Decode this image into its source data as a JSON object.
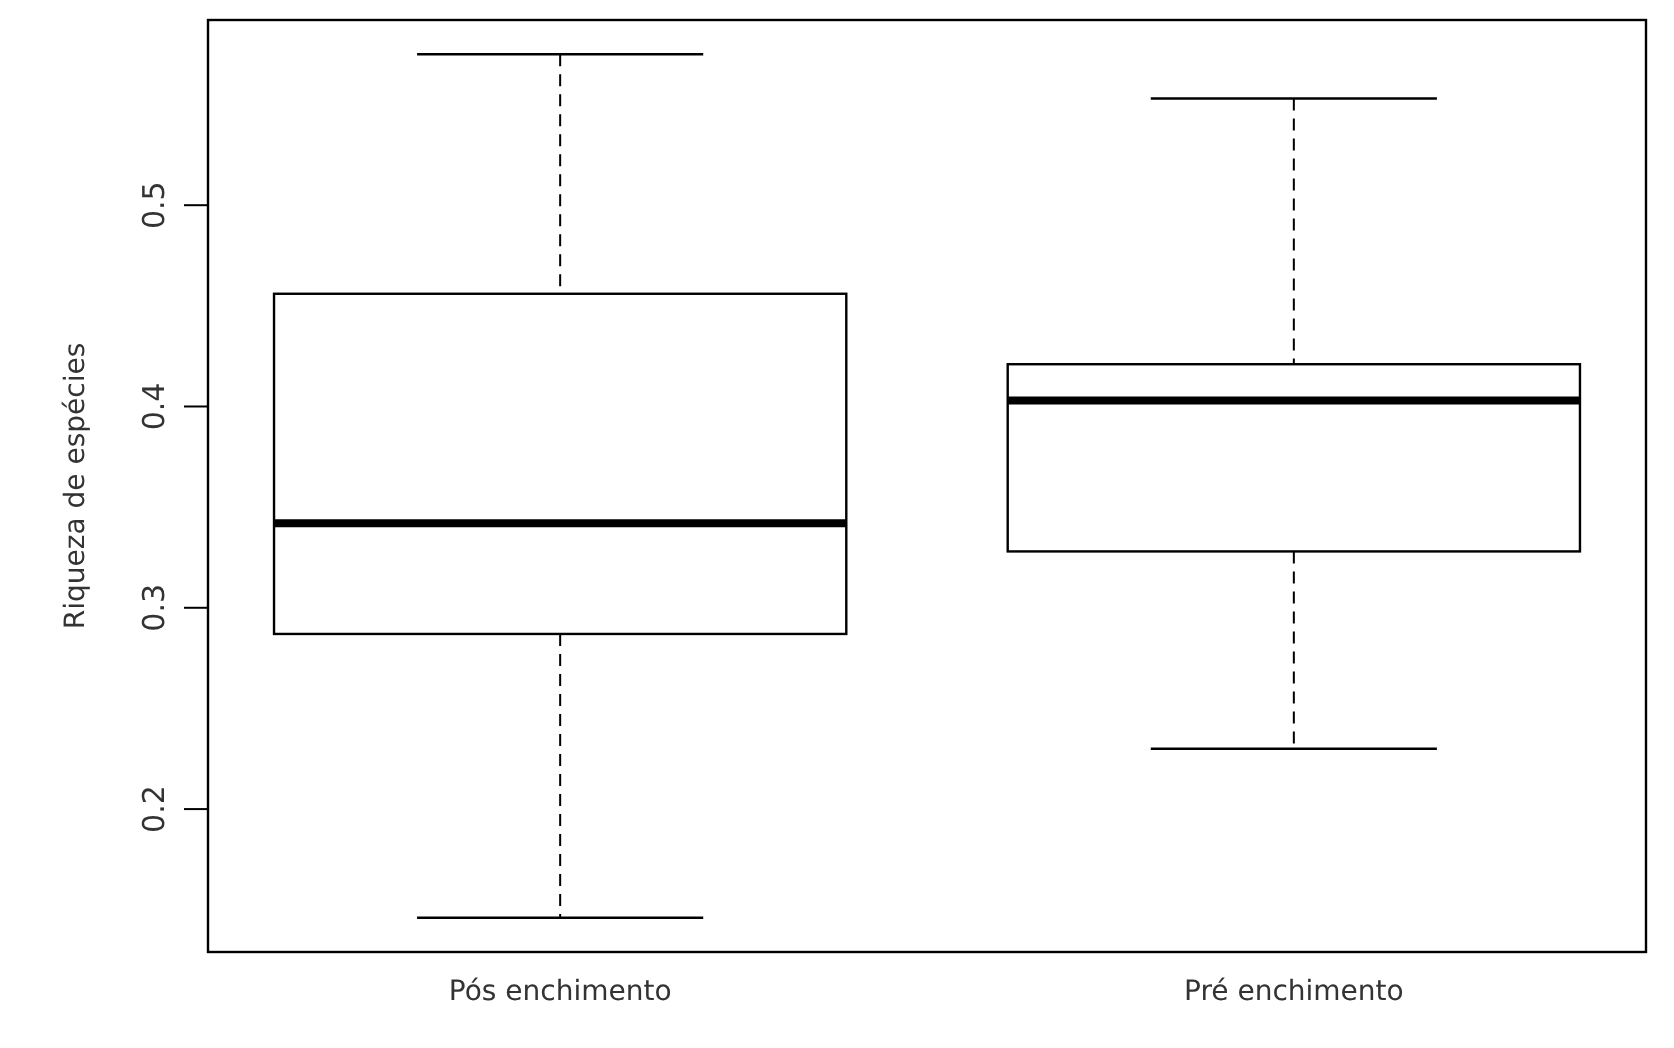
{
  "chart_data": {
    "type": "box",
    "ylabel": "Riqueza de espécies",
    "categories": [
      "Pós enchimento",
      "Pré enchimento"
    ],
    "boxes": [
      {
        "low": 0.146,
        "q1": 0.287,
        "median": 0.342,
        "q3": 0.456,
        "high": 0.575
      },
      {
        "low": 0.23,
        "q1": 0.328,
        "median": 0.403,
        "q3": 0.421,
        "high": 0.553
      }
    ],
    "ylim": [
      0.129,
      0.592
    ],
    "yticks": [
      0.2,
      0.3,
      0.4,
      0.5
    ],
    "grid": false
  }
}
